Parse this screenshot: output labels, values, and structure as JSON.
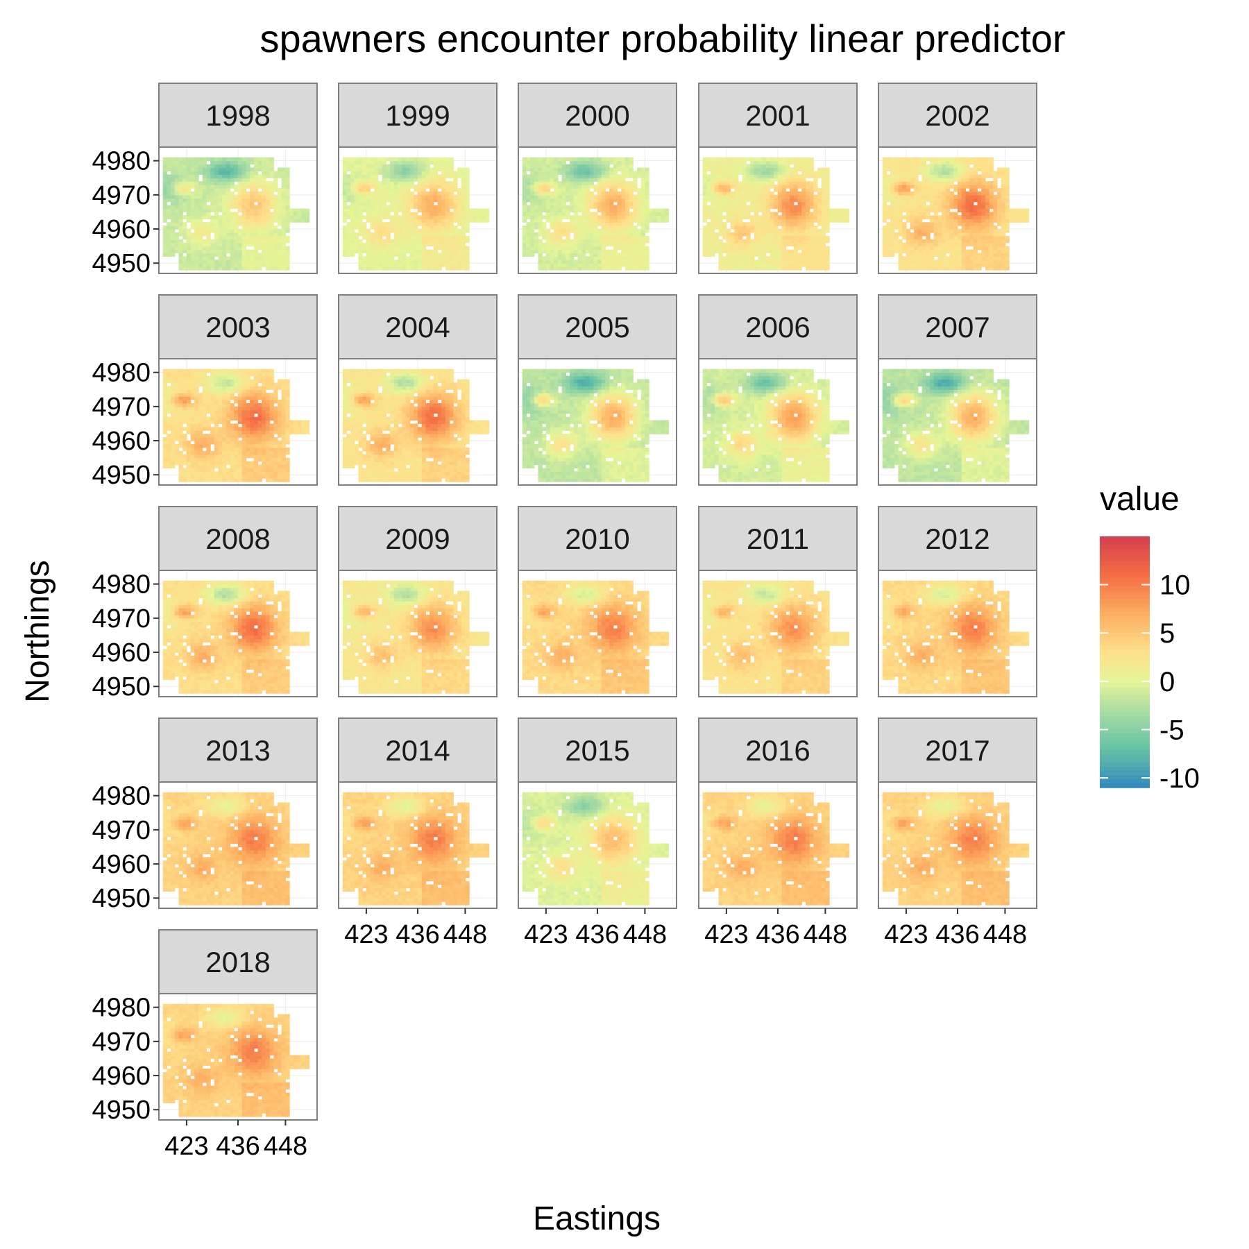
{
  "chart_data": {
    "type": "heatmap",
    "title": "spawners encounter probability linear predictor",
    "xlabel": "Eastings",
    "ylabel": "Northings",
    "facets": [
      "1998",
      "1999",
      "2000",
      "2001",
      "2002",
      "2003",
      "2004",
      "2005",
      "2006",
      "2007",
      "2008",
      "2009",
      "2010",
      "2011",
      "2012",
      "2013",
      "2014",
      "2015",
      "2016",
      "2017",
      "2018"
    ],
    "x_ticks": [
      "423",
      "436",
      "448"
    ],
    "y_ticks": [
      "4950",
      "4960",
      "4970",
      "4980"
    ],
    "xlim": [
      416,
      456
    ],
    "ylim": [
      4947,
      4984
    ],
    "legend": {
      "title": "value",
      "position": "right",
      "ticks": [
        10,
        5,
        0,
        -5,
        -10
      ],
      "range": [
        -11,
        15
      ],
      "palette": "Spectral"
    },
    "panels": [
      {
        "year": "1998",
        "base": -1.5,
        "hotspot": 5,
        "coldspot": -8
      },
      {
        "year": "1999",
        "base": 0,
        "hotspot": 7,
        "coldspot": -5
      },
      {
        "year": "2000",
        "base": -1,
        "hotspot": 7,
        "coldspot": -7
      },
      {
        "year": "2001",
        "base": 1,
        "hotspot": 9,
        "coldspot": -4
      },
      {
        "year": "2002",
        "base": 2.5,
        "hotspot": 11,
        "coldspot": -3
      },
      {
        "year": "2003",
        "base": 3,
        "hotspot": 11,
        "coldspot": -2
      },
      {
        "year": "2004",
        "base": 2.5,
        "hotspot": 11,
        "coldspot": -3
      },
      {
        "year": "2005",
        "base": -2,
        "hotspot": 7,
        "coldspot": -9
      },
      {
        "year": "2006",
        "base": -1,
        "hotspot": 8,
        "coldspot": -7
      },
      {
        "year": "2007",
        "base": -2,
        "hotspot": 7,
        "coldspot": -9
      },
      {
        "year": "2008",
        "base": 3,
        "hotspot": 11,
        "coldspot": -3
      },
      {
        "year": "2009",
        "base": 2,
        "hotspot": 9,
        "coldspot": -3
      },
      {
        "year": "2010",
        "base": 3.5,
        "hotspot": 10,
        "coldspot": -1
      },
      {
        "year": "2011",
        "base": 2.5,
        "hotspot": 9,
        "coldspot": -2
      },
      {
        "year": "2012",
        "base": 3.5,
        "hotspot": 10,
        "coldspot": -1
      },
      {
        "year": "2013",
        "base": 4,
        "hotspot": 10,
        "coldspot": 0
      },
      {
        "year": "2014",
        "base": 4,
        "hotspot": 10,
        "coldspot": 0
      },
      {
        "year": "2015",
        "base": -0.5,
        "hotspot": 6,
        "coldspot": -5
      },
      {
        "year": "2016",
        "base": 4,
        "hotspot": 10,
        "coldspot": 0
      },
      {
        "year": "2017",
        "base": 4,
        "hotspot": 10,
        "coldspot": 0
      },
      {
        "year": "2018",
        "base": 4,
        "hotspot": 10,
        "coldspot": 0
      }
    ]
  }
}
